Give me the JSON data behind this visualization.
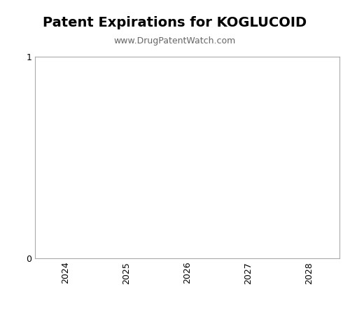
{
  "title": "Patent Expirations for KOGLUCOID",
  "subtitle": "www.DrugPatentWatch.com",
  "title_fontsize": 14,
  "subtitle_fontsize": 9,
  "title_fontweight": "bold",
  "subtitle_color": "#666666",
  "x_years": [
    2024,
    2025,
    2026,
    2027,
    2028
  ],
  "xlim": [
    2023.5,
    2028.5
  ],
  "ylim": [
    0,
    1
  ],
  "yticks": [
    0,
    1
  ],
  "background_color": "#ffffff",
  "plot_bg_color": "#ffffff",
  "spine_color": "#aaaaaa",
  "tick_label_color": "#000000",
  "tick_label_fontsize": 9
}
